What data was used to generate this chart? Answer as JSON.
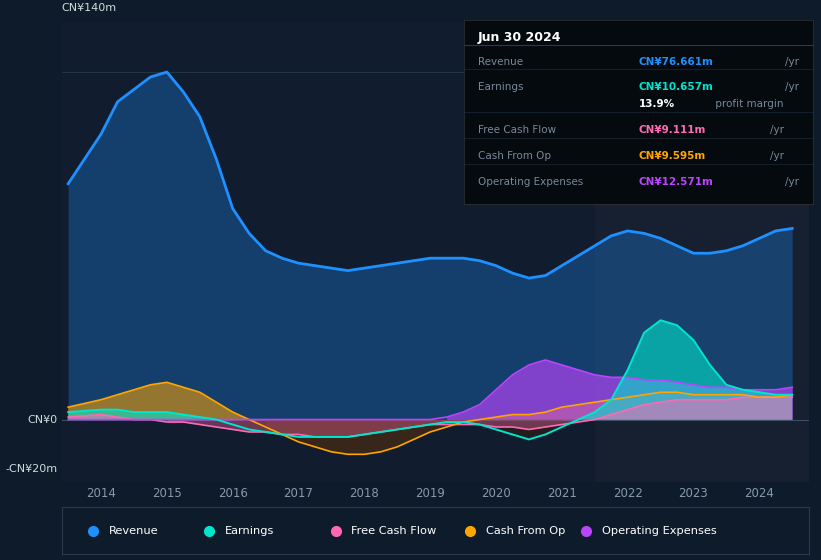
{
  "bg_color": "#0d1b2a",
  "plot_bg_color": "#111d2e",
  "right_panel_color": "#162030",
  "title_box": {
    "date": "Jun 30 2024",
    "rows": [
      {
        "label": "Revenue",
        "value": "CN¥76.661m",
        "unit": "/yr",
        "color": "#1e90ff"
      },
      {
        "label": "Earnings",
        "value": "CN¥10.657m",
        "unit": "/yr",
        "color": "#00e5cc"
      },
      {
        "label": "",
        "value": "13.9%",
        "unit": " profit margin",
        "color": "#ffffff"
      },
      {
        "label": "Free Cash Flow",
        "value": "CN¥9.111m",
        "unit": "/yr",
        "color": "#ff69b4"
      },
      {
        "label": "Cash From Op",
        "value": "CN¥9.595m",
        "unit": "/yr",
        "color": "#ffa500"
      },
      {
        "label": "Operating Expenses",
        "value": "CN¥12.571m",
        "unit": "/yr",
        "color": "#bb44ff"
      }
    ]
  },
  "ylabel_top": "CN¥140m",
  "ylabel_zero": "CN¥0",
  "ylabel_neg": "-CN¥20m",
  "ylim": [
    -25,
    160
  ],
  "xlim": [
    2013.4,
    2024.75
  ],
  "xticks": [
    2014,
    2015,
    2016,
    2017,
    2018,
    2019,
    2020,
    2021,
    2022,
    2023,
    2024
  ],
  "y_zero": 0,
  "y_top": 140,
  "years": [
    2013.5,
    2014.0,
    2014.25,
    2014.5,
    2014.75,
    2015.0,
    2015.25,
    2015.5,
    2015.75,
    2016.0,
    2016.25,
    2016.5,
    2016.75,
    2017.0,
    2017.25,
    2017.5,
    2017.75,
    2018.0,
    2018.25,
    2018.5,
    2018.75,
    2019.0,
    2019.25,
    2019.5,
    2019.75,
    2020.0,
    2020.25,
    2020.5,
    2020.75,
    2021.0,
    2021.25,
    2021.5,
    2021.75,
    2022.0,
    2022.25,
    2022.5,
    2022.75,
    2023.0,
    2023.25,
    2023.5,
    2023.75,
    2024.0,
    2024.25,
    2024.5
  ],
  "revenue": [
    95,
    115,
    128,
    133,
    138,
    140,
    132,
    122,
    105,
    85,
    75,
    68,
    65,
    63,
    62,
    61,
    60,
    61,
    62,
    63,
    64,
    65,
    65,
    65,
    64,
    62,
    59,
    57,
    58,
    62,
    66,
    70,
    74,
    76,
    75,
    73,
    70,
    67,
    67,
    68,
    70,
    73,
    76,
    77
  ],
  "earnings": [
    3,
    4,
    4,
    3,
    3,
    3,
    2,
    1,
    0,
    -2,
    -4,
    -5,
    -6,
    -7,
    -7,
    -7,
    -7,
    -6,
    -5,
    -4,
    -3,
    -2,
    -1,
    -1,
    -2,
    -4,
    -6,
    -8,
    -6,
    -3,
    0,
    3,
    8,
    20,
    35,
    40,
    38,
    32,
    22,
    14,
    12,
    11,
    10,
    10
  ],
  "free_cash_flow": [
    1,
    2,
    1,
    0,
    0,
    -1,
    -1,
    -2,
    -3,
    -4,
    -5,
    -5,
    -6,
    -6,
    -7,
    -7,
    -7,
    -6,
    -5,
    -4,
    -3,
    -2,
    -2,
    -2,
    -2,
    -3,
    -3,
    -4,
    -3,
    -2,
    -1,
    0,
    2,
    4,
    6,
    7,
    8,
    8,
    8,
    8,
    9,
    9,
    9,
    9
  ],
  "cash_from_op": [
    5,
    8,
    10,
    12,
    14,
    15,
    13,
    11,
    7,
    3,
    0,
    -3,
    -6,
    -9,
    -11,
    -13,
    -14,
    -14,
    -13,
    -11,
    -8,
    -5,
    -3,
    -1,
    0,
    1,
    2,
    2,
    3,
    5,
    6,
    7,
    8,
    9,
    10,
    11,
    11,
    10,
    10,
    10,
    10,
    9,
    9,
    10
  ],
  "op_expenses": [
    0,
    0,
    0,
    0,
    0,
    0,
    0,
    0,
    0,
    0,
    0,
    0,
    0,
    0,
    0,
    0,
    0,
    0,
    0,
    0,
    0,
    0,
    1,
    3,
    6,
    12,
    18,
    22,
    24,
    22,
    20,
    18,
    17,
    17,
    16,
    16,
    15,
    14,
    13,
    13,
    12,
    12,
    12,
    13
  ],
  "colors": {
    "revenue": "#1e90ff",
    "earnings": "#00e5cc",
    "free_cash_flow": "#ff69b4",
    "cash_from_op": "#ffa500",
    "op_expenses": "#bb44ff"
  },
  "legend": [
    {
      "label": "Revenue",
      "color": "#1e90ff"
    },
    {
      "label": "Earnings",
      "color": "#00e5cc"
    },
    {
      "label": "Free Cash Flow",
      "color": "#ff69b4"
    },
    {
      "label": "Cash From Op",
      "color": "#ffa500"
    },
    {
      "label": "Operating Expenses",
      "color": "#bb44ff"
    }
  ]
}
